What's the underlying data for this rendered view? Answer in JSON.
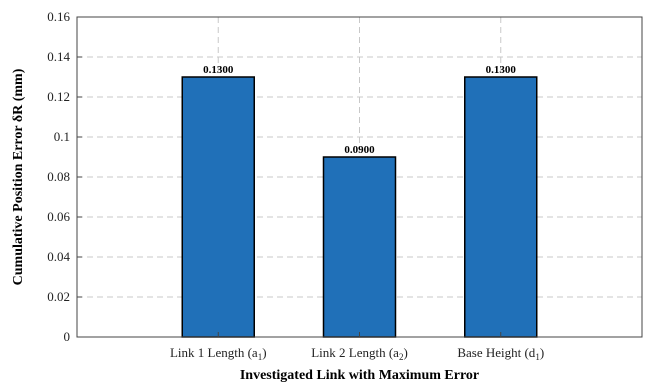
{
  "chart_data": {
    "type": "bar",
    "categories": [
      {
        "name": "Link 1 Length (a",
        "sub": "1",
        "close": ")"
      },
      {
        "name": "Link 2 Length (a",
        "sub": "2",
        "close": ")"
      },
      {
        "name": "Base Height (d",
        "sub": "1",
        "close": ")"
      }
    ],
    "values": [
      0.13,
      0.09,
      0.13
    ],
    "data_labels": [
      "0.1300",
      "0.0900",
      "0.1300"
    ],
    "xlabel": "Investigated Link with Maximum Error",
    "ylabel": "Cumulative Position Error δR (mm)",
    "ylim": [
      0,
      0.16
    ],
    "yticks": [
      0,
      0.02,
      0.04,
      0.06,
      0.08,
      0.1,
      0.12,
      0.14,
      0.16
    ],
    "ytick_labels": [
      "0",
      "0.02",
      "0.04",
      "0.06",
      "0.08",
      "0.1",
      "0.12",
      "0.14",
      "0.16"
    ],
    "grid": true,
    "bar_color": "#2070b8",
    "bar_edge_color": "#000000"
  }
}
